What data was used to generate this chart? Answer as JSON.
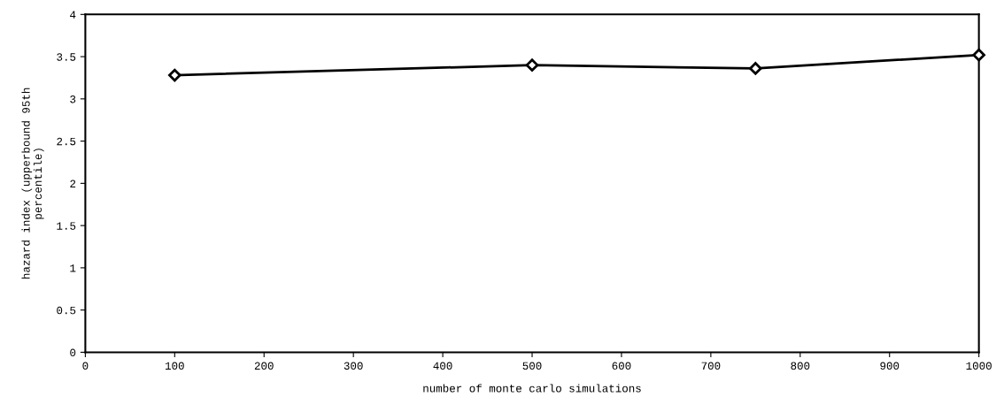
{
  "chart_data": {
    "type": "line",
    "xlabel": "number of monte carlo simulations",
    "ylabel": "hazard index (upperbound 95th\npercentile)",
    "x": [
      100,
      500,
      750,
      1000
    ],
    "series": [
      {
        "color": "#000000",
        "values": [
          3.28,
          3.4,
          3.36,
          3.52
        ]
      }
    ],
    "xlim": [
      0,
      1000
    ],
    "xticks": [
      0,
      100,
      200,
      300,
      400,
      500,
      600,
      700,
      800,
      900,
      1000
    ],
    "ylim": [
      0,
      4
    ],
    "yticks": [
      0,
      0.5,
      1,
      1.5,
      2,
      2.5,
      3,
      3.5,
      4
    ],
    "marker": "diamond",
    "line_style": "solid",
    "grid": false
  }
}
